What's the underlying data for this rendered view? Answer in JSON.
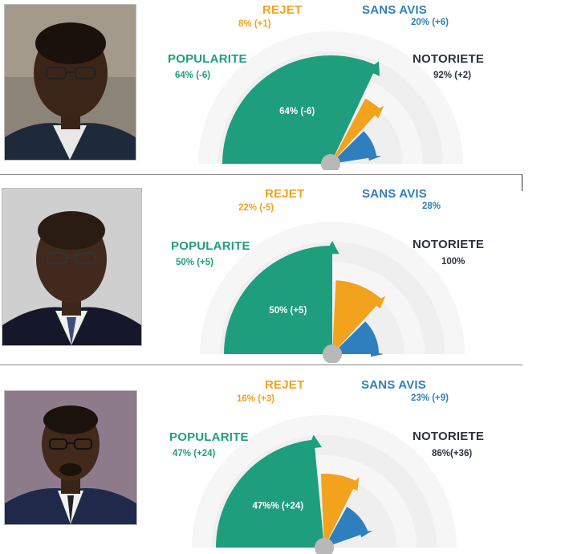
{
  "chart_data": [
    {
      "type": "radial-bar",
      "series": [
        {
          "name": "POPULARITE",
          "label": "64% (-6)",
          "value": 64,
          "color": "#1f9e7e"
        },
        {
          "name": "REJET",
          "label": "8% (+1)",
          "value": 8,
          "color": "#f2a21c"
        },
        {
          "name": "SANS AVIS",
          "label": "20% (+6)",
          "value": 20,
          "color": "#2f7fbf"
        },
        {
          "name": "NOTORIETE",
          "label": "92% (+2)",
          "value": 92,
          "color": "#2b3340"
        }
      ],
      "inner_label": "64% (-6)"
    },
    {
      "type": "radial-bar",
      "series": [
        {
          "name": "POPULARITE",
          "label": "50% (+5)",
          "value": 50,
          "color": "#1f9e7e"
        },
        {
          "name": "REJET",
          "label": "22% (-5)",
          "value": 22,
          "color": "#f2a21c"
        },
        {
          "name": "SANS AVIS",
          "label": "28%",
          "value": 28,
          "color": "#2f7fbf"
        },
        {
          "name": "NOTORIETE",
          "label": "100%",
          "value": 100,
          "color": "#2b3340"
        }
      ],
      "inner_label": "50% (+5)"
    },
    {
      "type": "radial-bar",
      "series": [
        {
          "name": "POPULARITE",
          "label": "47% (+24)",
          "value": 47,
          "color": "#1f9e7e"
        },
        {
          "name": "REJET",
          "label": "16% (+3)",
          "value": 16,
          "color": "#f2a21c"
        },
        {
          "name": "SANS AVIS",
          "label": "23% (+9)",
          "value": 23,
          "color": "#2f7fbf"
        },
        {
          "name": "NOTORIETE",
          "label": "86%(+36)",
          "value": 86,
          "color": "#2b3340"
        }
      ],
      "inner_label": "47%% (+24)"
    }
  ]
}
